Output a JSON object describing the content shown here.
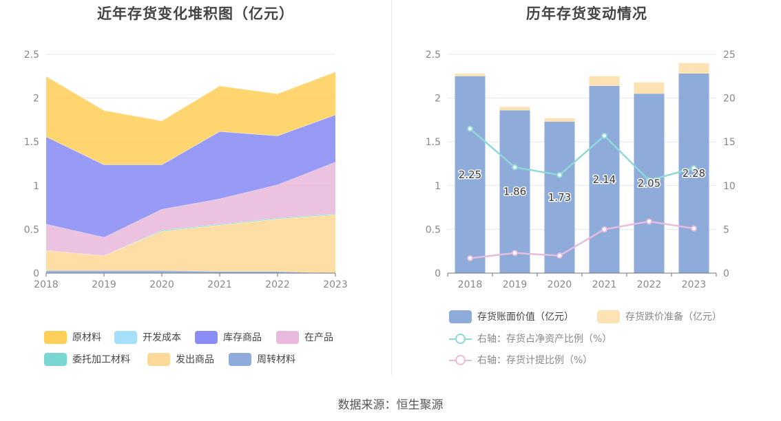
{
  "left_title": "近年存货变化堆积图（亿元）",
  "right_title": "历年存货变动情况",
  "source": "数据来源：恒生聚源",
  "chart_data": [
    {
      "type": "area",
      "stacked": true,
      "title": "近年存货变化堆积图（亿元）",
      "categories": [
        "2018",
        "2019",
        "2020",
        "2021",
        "2022",
        "2023"
      ],
      "ylim": [
        0,
        2.5
      ],
      "yticks": [
        "0",
        "0.5",
        "1",
        "1.5",
        "2",
        "2.5"
      ],
      "grid": true,
      "legend_position": "bottom",
      "series": [
        {
          "name": "周转材料",
          "color": "#8fabdc",
          "values": [
            0.03,
            0.03,
            0.03,
            0.02,
            0.02,
            0.0
          ]
        },
        {
          "name": "发出商品",
          "color": "#ffd99a",
          "values": [
            0.23,
            0.17,
            0.45,
            0.53,
            0.6,
            0.67
          ]
        },
        {
          "name": "委托加工材料",
          "color": "#7ad6d3",
          "values": [
            0.0,
            0.0,
            0.01,
            0.01,
            0.01,
            0.01
          ]
        },
        {
          "name": "在产品",
          "color": "#e8b9dc",
          "values": [
            0.3,
            0.21,
            0.24,
            0.29,
            0.38,
            0.59
          ]
        },
        {
          "name": "库存商品",
          "color": "#8a8df5",
          "values": [
            1.0,
            0.83,
            0.51,
            0.77,
            0.56,
            0.54
          ]
        },
        {
          "name": "开发成本",
          "color": "#a6dffa",
          "values": [
            0.0,
            0.0,
            0.0,
            0.0,
            0.0,
            0.0
          ]
        },
        {
          "name": "原材料",
          "color": "#ffcf5c",
          "values": [
            0.69,
            0.62,
            0.5,
            0.52,
            0.48,
            0.49
          ]
        }
      ],
      "legend_order": [
        "原材料",
        "开发成本",
        "库存商品",
        "在产品",
        "委托加工材料",
        "发出商品",
        "周转材料"
      ]
    },
    {
      "type": "bar",
      "stacked": true,
      "title": "历年存货变动情况",
      "categories": [
        "2018",
        "2019",
        "2020",
        "2021",
        "2022",
        "2023"
      ],
      "ylim": [
        0,
        2.5
      ],
      "yticks": [
        "0",
        "0.5",
        "1",
        "1.5",
        "2",
        "2.5"
      ],
      "y2lim": [
        0,
        25
      ],
      "y2ticks": [
        "0",
        "5",
        "10",
        "15",
        "20",
        "25"
      ],
      "grid": true,
      "legend_position": "bottom",
      "series": [
        {
          "name": "存货账面价值（亿元）",
          "type": "bar",
          "axis": "left",
          "color": "#8eabd9",
          "values": [
            2.25,
            1.86,
            1.73,
            2.14,
            2.05,
            2.28
          ],
          "labels": [
            "2.25",
            "1.86",
            "1.73",
            "2.14",
            "2.05",
            "2.28"
          ]
        },
        {
          "name": "存货跌价准备（亿元）",
          "type": "bar",
          "axis": "left",
          "color": "#fde3b4",
          "values": [
            0.03,
            0.04,
            0.04,
            0.11,
            0.13,
            0.12
          ]
        },
        {
          "name": "右轴：存货占净资产比例（%）",
          "type": "line",
          "axis": "right",
          "color": "#8ed8d7",
          "values": [
            16.5,
            12.1,
            11.2,
            15.7,
            10.6,
            12.0
          ]
        },
        {
          "name": "右轴：存货计提比例（%）",
          "type": "line",
          "axis": "right",
          "color": "#e8bcdc",
          "values": [
            1.7,
            2.3,
            2.0,
            5.0,
            5.9,
            5.1
          ]
        }
      ]
    }
  ]
}
